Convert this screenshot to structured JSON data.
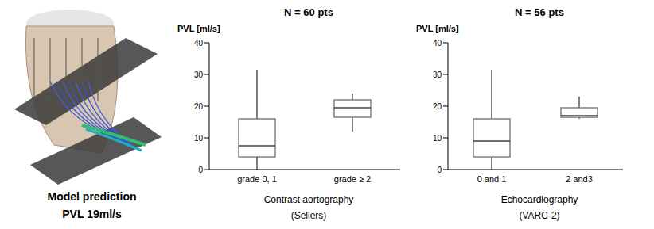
{
  "figure": {
    "caption": [
      "Model prediction",
      "PVL 19ml/s"
    ]
  },
  "chart_data": [
    {
      "type": "box",
      "title": "N = 60 pts",
      "y_label": "PVL [ml/s]",
      "x_label": [
        "Contrast aortography",
        "(Sellers)"
      ],
      "categories": [
        "grade 0, 1",
        "grade ≥ 2"
      ],
      "boxes": [
        {
          "min": 0,
          "q1": 4,
          "median": 7.5,
          "q3": 16,
          "max": 31.5
        },
        {
          "min": 12,
          "q1": 16.5,
          "median": 19.5,
          "q3": 22,
          "max": 24
        }
      ],
      "color": "#808080",
      "ylim": [
        0,
        40
      ],
      "yticks": [
        0,
        10,
        20,
        30,
        40
      ],
      "grid": false
    },
    {
      "type": "box",
      "title": "N = 56 pts",
      "y_label": "PVL [ml/s]",
      "x_label": [
        "Echocardiography",
        "(VARC-2)"
      ],
      "categories": [
        "0 and 1",
        "2 and3"
      ],
      "boxes": [
        {
          "min": 0,
          "q1": 4,
          "median": 9,
          "q3": 16,
          "max": 31.5
        },
        {
          "min": 16,
          "q1": 16.5,
          "median": 17,
          "q3": 19.5,
          "max": 23
        }
      ],
      "color": "#808080",
      "ylim": [
        0,
        40
      ],
      "yticks": [
        0,
        10,
        20,
        30,
        40
      ],
      "grid": false
    }
  ]
}
